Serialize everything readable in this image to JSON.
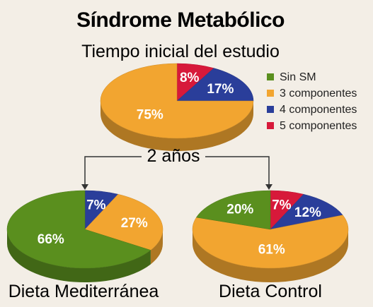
{
  "title": "Síndrome Metabólico",
  "colors": {
    "Sin SM": "#5a8f1e",
    "3 componentes": "#f2a530",
    "4 componentes": "#2a3e9a",
    "5 componentes": "#d7193a"
  },
  "connector_label": "2 años",
  "chart_data": [
    {
      "type": "pie",
      "title": "Tiempo inicial del estudio",
      "slices": [
        {
          "category": "5 componentes",
          "value": 8,
          "label": "8%"
        },
        {
          "category": "4 componentes",
          "value": 17,
          "label": "17%"
        },
        {
          "category": "3 componentes",
          "value": 75,
          "label": "75%"
        }
      ],
      "legend": [
        "Sin SM",
        "3 componentes",
        "4 componentes",
        "5 componentes"
      ],
      "legend_position": "right"
    },
    {
      "type": "pie",
      "title": "Dieta Mediterránea",
      "slices": [
        {
          "category": "4 componentes",
          "value": 7,
          "label": "7%"
        },
        {
          "category": "3 componentes",
          "value": 27,
          "label": "27%"
        },
        {
          "category": "Sin SM",
          "value": 66,
          "label": "66%"
        }
      ]
    },
    {
      "type": "pie",
      "title": "Dieta Control",
      "slices": [
        {
          "category": "5 componentes",
          "value": 7,
          "label": "7%"
        },
        {
          "category": "4 componentes",
          "value": 12,
          "label": "12%"
        },
        {
          "category": "3 componentes",
          "value": 61,
          "label": "61%"
        },
        {
          "category": "Sin SM",
          "value": 20,
          "label": "20%"
        }
      ]
    }
  ]
}
